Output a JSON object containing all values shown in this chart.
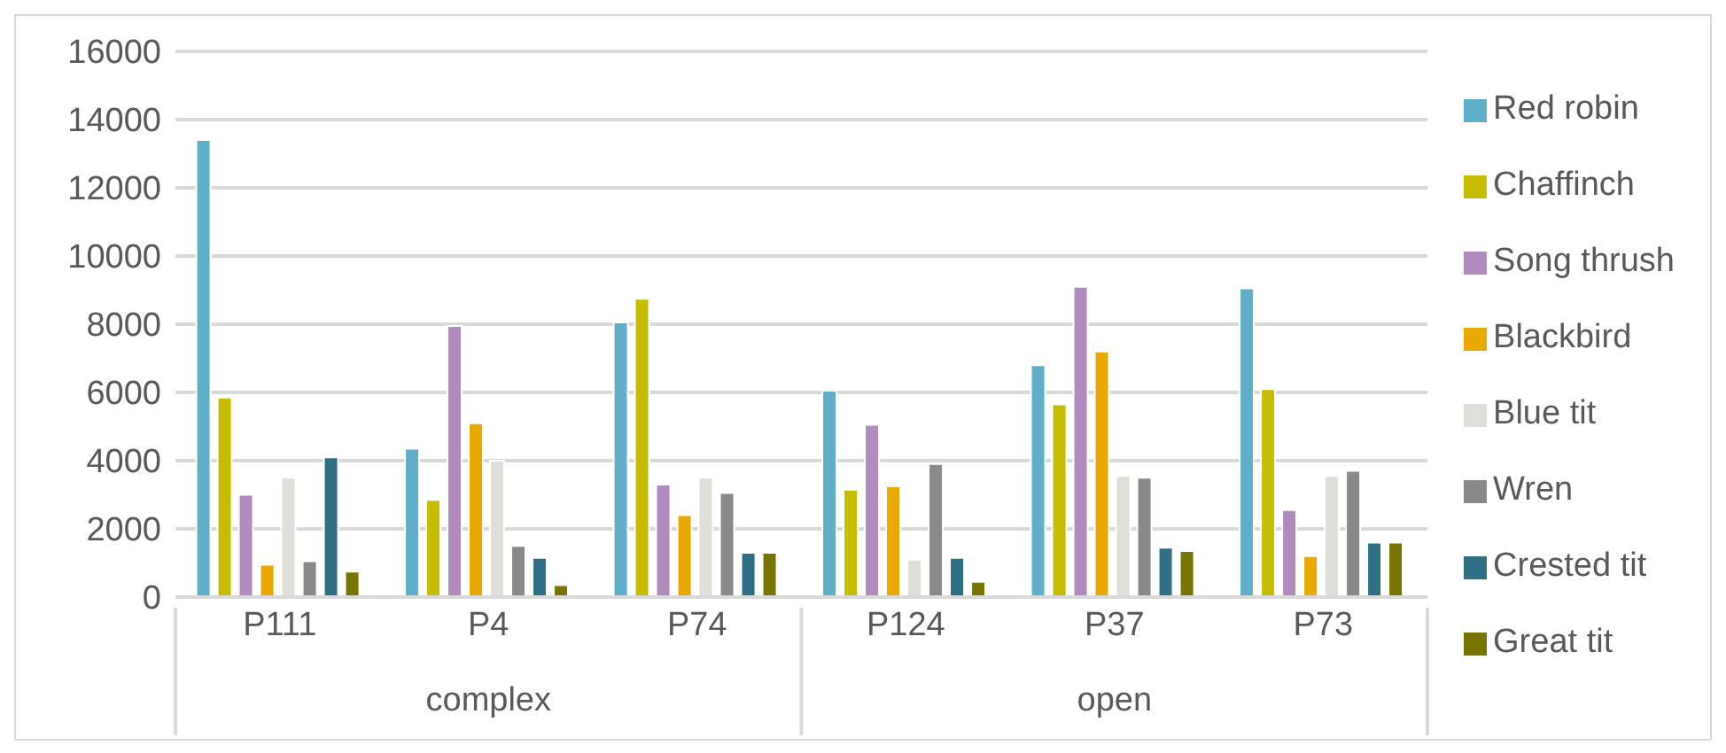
{
  "chart_data": {
    "type": "bar",
    "categories": [
      "P111",
      "P4",
      "P74",
      "P124",
      "P37",
      "P73"
    ],
    "annotations": [
      "complex",
      "open"
    ],
    "ylim": [
      0,
      16000
    ],
    "yticks": [
      0,
      2000,
      4000,
      6000,
      8000,
      10000,
      12000,
      14000,
      16000
    ],
    "grid": "y",
    "legend": "right",
    "series": [
      {
        "name": "Red robin",
        "color": "#5fafc8",
        "values": [
          13400,
          4350,
          8050,
          6050,
          6800,
          9050
        ]
      },
      {
        "name": "Chaffinch",
        "color": "#c6bd00",
        "values": [
          5850,
          2850,
          8750,
          3150,
          5650,
          6100
        ]
      },
      {
        "name": "Song thrush",
        "color": "#b08cbe",
        "values": [
          3000,
          7950,
          3300,
          5050,
          9100,
          2550
        ]
      },
      {
        "name": "Blackbird",
        "color": "#e9a900",
        "values": [
          950,
          5100,
          2400,
          3250,
          7200,
          1200
        ]
      },
      {
        "name": "Blue tit",
        "color": "#e0ded8",
        "values": [
          3500,
          4000,
          3500,
          1100,
          3550,
          3550
        ]
      },
      {
        "name": "Wren",
        "color": "#898989",
        "values": [
          1050,
          1500,
          3050,
          3900,
          3500,
          3700
        ]
      },
      {
        "name": "Crested tit",
        "color": "#2e6f84",
        "values": [
          4100,
          1150,
          1300,
          1150,
          1450,
          1600
        ]
      },
      {
        "name": "Great tit",
        "color": "#787400",
        "values": [
          750,
          350,
          1300,
          450,
          1350,
          1600
        ]
      }
    ]
  }
}
